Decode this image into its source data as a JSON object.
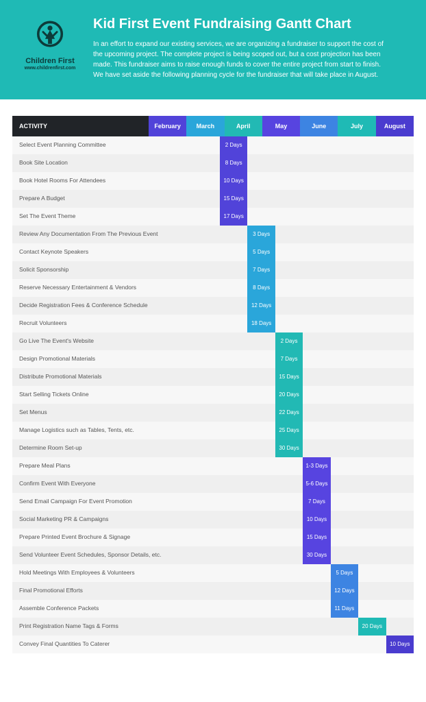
{
  "header": {
    "logo_name": "Children First",
    "logo_url": "www.childrenfirst.com",
    "title": "Kid First Event Fundraising Gantt Chart",
    "description": "In an effort to expand our existing services, we are organizing a fundraiser to support the cost of the upcoming project. The complete project is being scoped out, but a cost projection has been made. This fundraiser aims to raise enough funds to cover the entire project from start to finish. We have set aside the following planning cycle for the fundraiser that will take place in August."
  },
  "chart": {
    "activity_header": "ACTIVITY",
    "activity_col_width": 199,
    "months": [
      {
        "label": "February",
        "color": "#5143d9"
      },
      {
        "label": "March",
        "color": "#2aa6da"
      },
      {
        "label": "April",
        "color": "#22b9b4"
      },
      {
        "label": "May",
        "color": "#5744e0"
      },
      {
        "label": "June",
        "color": "#3d84e2"
      },
      {
        "label": "July",
        "color": "#1fbab5"
      },
      {
        "label": "August",
        "color": "#4a3ccf"
      }
    ],
    "rows": [
      {
        "label": "Select Event Planning Committee",
        "bar": {
          "month": 0,
          "text": "2 Days"
        }
      },
      {
        "label": "Book Site Location",
        "bar": {
          "month": 0,
          "text": "8 Days"
        }
      },
      {
        "label": "Book Hotel Rooms For Attendees",
        "bar": {
          "month": 0,
          "text": "10 Days"
        }
      },
      {
        "label": "Prepare A Budget",
        "bar": {
          "month": 0,
          "text": "15 Days"
        }
      },
      {
        "label": "Set The Event Theme",
        "bar": {
          "month": 0,
          "text": "17 Days"
        }
      },
      {
        "label": "Review Any Documentation From The Previous Event",
        "bar": {
          "month": 1,
          "text": "3 Days"
        }
      },
      {
        "label": "Contact Keynote Speakers",
        "bar": {
          "month": 1,
          "text": "5 Days"
        }
      },
      {
        "label": "Solicit Sponsorship",
        "bar": {
          "month": 1,
          "text": "7 Days"
        }
      },
      {
        "label": "Reserve Necessary Entertainment & Vendors",
        "bar": {
          "month": 1,
          "text": "8 Days"
        }
      },
      {
        "label": "Decide Registration Fees & Conference Schedule",
        "bar": {
          "month": 1,
          "text": "12 Days"
        }
      },
      {
        "label": "Recruit Volunteers",
        "bar": {
          "month": 1,
          "text": "18 Days"
        }
      },
      {
        "label": "Go Live The Event's Website",
        "bar": {
          "month": 2,
          "text": "2 Days"
        }
      },
      {
        "label": "Design Promotional Materials",
        "bar": {
          "month": 2,
          "text": "7 Days"
        }
      },
      {
        "label": "Distribute Promotional Materials",
        "bar": {
          "month": 2,
          "text": "15 Days"
        }
      },
      {
        "label": "Start Selling Tickets Online",
        "bar": {
          "month": 2,
          "text": "20 Days"
        }
      },
      {
        "label": "Set Menus",
        "bar": {
          "month": 2,
          "text": "22 Days"
        }
      },
      {
        "label": "Manage Logistics such as Tables, Tents, etc.",
        "bar": {
          "month": 2,
          "text": "25 Days"
        }
      },
      {
        "label": "Determine Room Set-up",
        "bar": {
          "month": 2,
          "text": "30 Days"
        }
      },
      {
        "label": "Prepare Meal Plans",
        "bar": {
          "month": 3,
          "text": "1-3 Days"
        }
      },
      {
        "label": "Confirm Event With Everyone",
        "bar": {
          "month": 3,
          "text": "5-6 Days"
        }
      },
      {
        "label": "Send Email Campaign For Event Promotion",
        "bar": {
          "month": 3,
          "text": "7 Days"
        }
      },
      {
        "label": "Social Marketing PR & Campaigns",
        "bar": {
          "month": 3,
          "text": "10 Days"
        }
      },
      {
        "label": "Prepare Printed Event Brochure & Signage",
        "bar": {
          "month": 3,
          "text": "15 Days"
        }
      },
      {
        "label": "Send Volunteer Event Schedules, Sponsor Details, etc.",
        "bar": {
          "month": 3,
          "text": "30 Days"
        }
      },
      {
        "label": "Hold Meetings With Employees & Volunteers",
        "bar": {
          "month": 4,
          "text": "5 Days"
        }
      },
      {
        "label": "Final Promotional Efforts",
        "bar": {
          "month": 4,
          "text": "12 Days"
        }
      },
      {
        "label": "Assemble Conference Packets",
        "bar": {
          "month": 4,
          "text": "11 Days"
        }
      },
      {
        "label": "Print Registration Name Tags & Forms",
        "bar": {
          "month": 5,
          "text": "20 Days"
        }
      },
      {
        "label": "Convey Final Quantities To Caterer",
        "bar": {
          "month": 6,
          "text": "10 Days"
        }
      }
    ]
  }
}
